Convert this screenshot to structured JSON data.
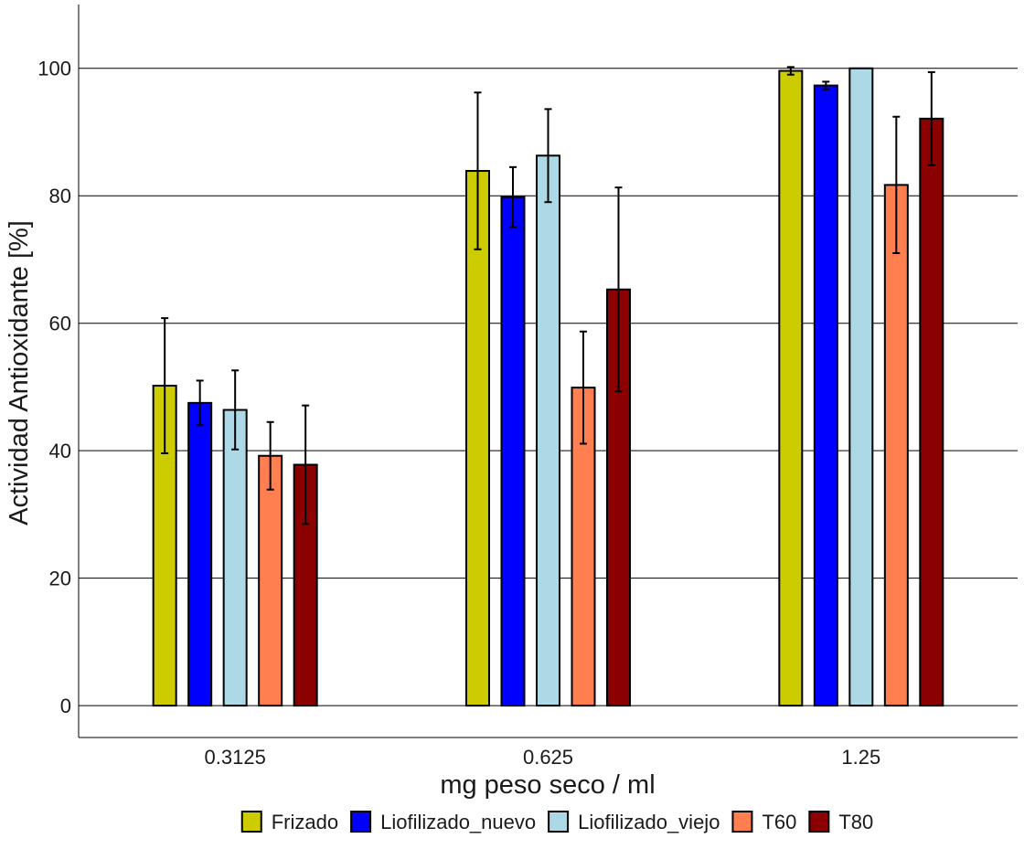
{
  "chart_data": {
    "type": "bar",
    "xlabel": "mg peso seco / ml",
    "ylabel": "Actividad Antioxidante [%]",
    "categories": [
      "0.3125",
      "0.625",
      "1.25"
    ],
    "ylim": [
      -5,
      110
    ],
    "yticks": [
      "0",
      "20",
      "40",
      "60",
      "80",
      "100"
    ],
    "grid": "horizontal major lines",
    "legend_position": "bottom",
    "series": [
      {
        "name": "Frizado",
        "color": "#cccc00",
        "values": [
          50.2,
          83.9,
          99.6
        ],
        "errors": [
          10.6,
          12.3,
          0.6
        ]
      },
      {
        "name": "Liofilizado_nuevo",
        "color": "#0000ff",
        "values": [
          47.5,
          79.8,
          97.3
        ],
        "errors": [
          3.5,
          4.7,
          0.6
        ]
      },
      {
        "name": "Liofilizado_viejo",
        "color": "#add8e6",
        "values": [
          46.4,
          86.3,
          100.0
        ],
        "errors": [
          6.2,
          7.3,
          0.0
        ]
      },
      {
        "name": "T60",
        "color": "#ff7f50",
        "values": [
          39.2,
          49.9,
          81.7
        ],
        "errors": [
          5.3,
          8.8,
          10.7
        ]
      },
      {
        "name": "T80",
        "color": "#8b0000",
        "values": [
          37.8,
          65.3,
          92.1
        ],
        "errors": [
          9.3,
          16.0,
          7.3
        ]
      }
    ]
  }
}
